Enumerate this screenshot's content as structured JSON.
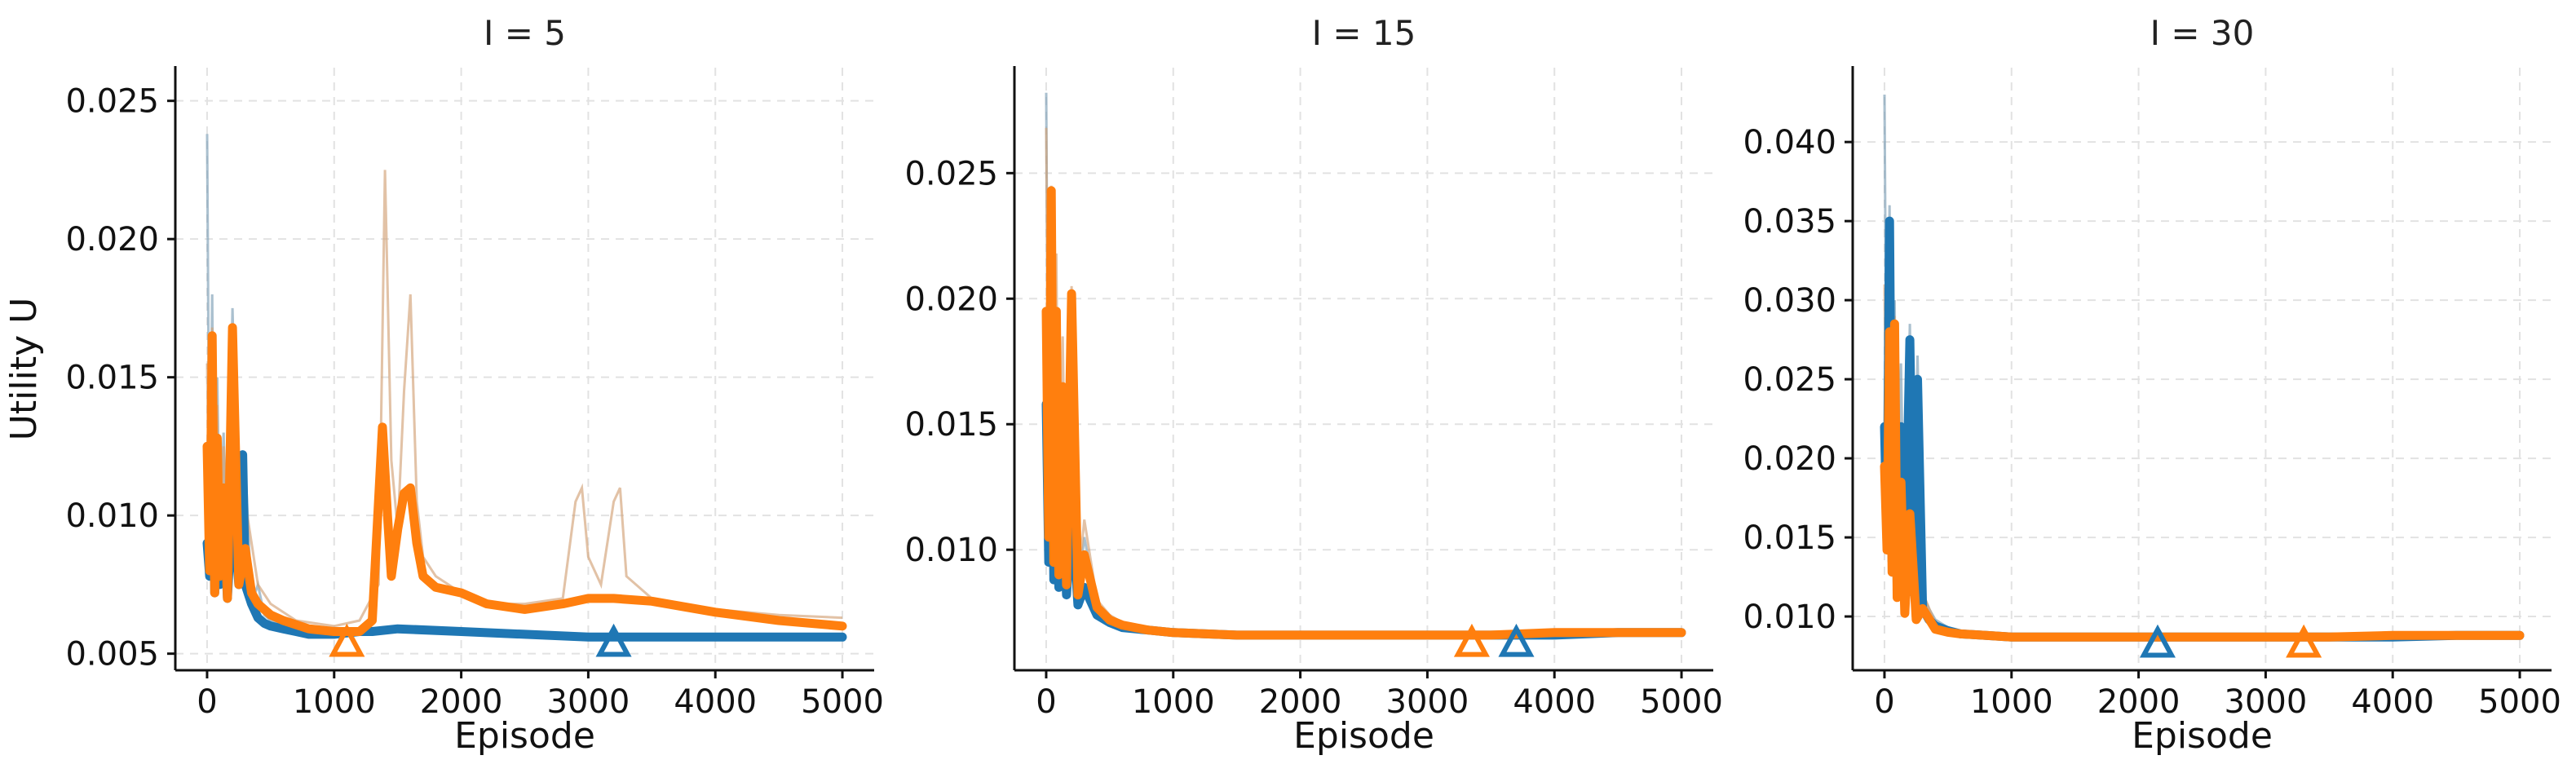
{
  "chart_data": [
    {
      "type": "line",
      "title": "I = 5",
      "xlabel": "Episode",
      "ylabel": "Utility U",
      "xlim": [
        -250,
        5250
      ],
      "ylim": [
        0.0044,
        0.0262
      ],
      "xticks": [
        0,
        1000,
        2000,
        3000,
        4000,
        5000
      ],
      "xtick_labels": [
        "0",
        "1000",
        "2000",
        "3000",
        "4000",
        "5000"
      ],
      "yticks": [
        0.005,
        0.01,
        0.015,
        0.02,
        0.025
      ],
      "ytick_labels": [
        "0.005",
        "0.010",
        "0.015",
        "0.020",
        "0.025"
      ],
      "grid": true,
      "series": [
        {
          "color": "#1f77b4",
          "raw": {
            "x": [
              0,
              20,
              40,
              60,
              80,
              100,
              130,
              160,
              200,
              250,
              300,
              350,
              400,
              450,
              500,
              600,
              700,
              800,
              1000,
              1200,
              1500,
              2000,
              2500,
              3000,
              3500,
              4000,
              4500,
              5000
            ],
            "y": [
              0.0238,
              0.0095,
              0.018,
              0.0075,
              0.015,
              0.0088,
              0.013,
              0.0072,
              0.0175,
              0.0085,
              0.012,
              0.0068,
              0.0075,
              0.0064,
              0.0062,
              0.006,
              0.0058,
              0.0058,
              0.0057,
              0.0058,
              0.006,
              0.0059,
              0.0057,
              0.0057,
              0.0056,
              0.0057,
              0.0056,
              0.0056
            ]
          },
          "smoothed": {
            "x": [
              0,
              20,
              40,
              60,
              80,
              100,
              130,
              160,
              200,
              250,
              280,
              300,
              350,
              400,
              450,
              500,
              600,
              700,
              800,
              1000,
              1200,
              1300,
              1500,
              2000,
              2500,
              3000,
              3500,
              4000,
              4500,
              5000
            ],
            "y": [
              0.009,
              0.0078,
              0.0135,
              0.0072,
              0.0115,
              0.0075,
              0.0098,
              0.007,
              0.0105,
              0.0075,
              0.0122,
              0.0075,
              0.0068,
              0.0063,
              0.0061,
              0.006,
              0.0059,
              0.0058,
              0.0057,
              0.0057,
              0.0058,
              0.0058,
              0.0059,
              0.0058,
              0.0057,
              0.0056,
              0.0056,
              0.0056,
              0.0056,
              0.0056
            ]
          },
          "marker": {
            "x": 3200,
            "y": 0.0054
          }
        },
        {
          "color": "#ff7f0e",
          "raw": {
            "x": [
              0,
              20,
              40,
              60,
              80,
              100,
              130,
              160,
              200,
              250,
              300,
              400,
              500,
              700,
              1000,
              1200,
              1350,
              1400,
              1450,
              1500,
              1550,
              1600,
              1650,
              1700,
              1800,
              2000,
              2200,
              2500,
              2800,
              2900,
              2950,
              3000,
              3100,
              3200,
              3250,
              3300,
              3500,
              4000,
              4500,
              5000
            ],
            "y": [
              0.0155,
              0.0085,
              0.0168,
              0.0075,
              0.014,
              0.0085,
              0.0125,
              0.0072,
              0.0165,
              0.0085,
              0.0105,
              0.0075,
              0.0068,
              0.0062,
              0.006,
              0.0062,
              0.0075,
              0.0225,
              0.012,
              0.0095,
              0.0145,
              0.018,
              0.0105,
              0.0085,
              0.0078,
              0.0072,
              0.0068,
              0.0068,
              0.007,
              0.0105,
              0.011,
              0.0085,
              0.0075,
              0.0105,
              0.011,
              0.0078,
              0.007,
              0.0066,
              0.0064,
              0.0063
            ]
          },
          "smoothed": {
            "x": [
              0,
              20,
              40,
              60,
              80,
              100,
              130,
              160,
              200,
              250,
              300,
              350,
              400,
              500,
              600,
              800,
              1000,
              1200,
              1300,
              1380,
              1420,
              1450,
              1500,
              1550,
              1600,
              1650,
              1700,
              1800,
              2000,
              2200,
              2500,
              2800,
              3000,
              3200,
              3500,
              4000,
              4500,
              5000
            ],
            "y": [
              0.0125,
              0.008,
              0.0165,
              0.0072,
              0.0128,
              0.0078,
              0.011,
              0.007,
              0.0168,
              0.0075,
              0.0088,
              0.0072,
              0.0068,
              0.0064,
              0.0062,
              0.0059,
              0.0058,
              0.0058,
              0.0062,
              0.0132,
              0.01,
              0.0078,
              0.0095,
              0.0108,
              0.011,
              0.009,
              0.0078,
              0.0074,
              0.0072,
              0.0068,
              0.0066,
              0.0068,
              0.007,
              0.007,
              0.0069,
              0.0065,
              0.0062,
              0.006
            ]
          },
          "marker": {
            "x": 1100,
            "y": 0.0054
          }
        }
      ]
    },
    {
      "type": "line",
      "title": "I = 15",
      "xlabel": "Episode",
      "ylabel": "",
      "xlim": [
        -250,
        5250
      ],
      "ylim": [
        0.0052,
        0.0292
      ],
      "xticks": [
        0,
        1000,
        2000,
        3000,
        4000,
        5000
      ],
      "xtick_labels": [
        "0",
        "1000",
        "2000",
        "3000",
        "4000",
        "5000"
      ],
      "yticks": [
        0.01,
        0.015,
        0.02,
        0.025
      ],
      "ytick_labels": [
        "0.010",
        "0.015",
        "0.020",
        "0.025"
      ],
      "grid": true,
      "series": [
        {
          "color": "#1f77b4",
          "raw": {
            "x": [
              0,
              20,
              40,
              60,
              80,
              100,
              130,
              160,
              200,
              250,
              300,
              400,
              500,
              600,
              800,
              1000,
              1500,
              2000,
              2500,
              3000,
              3500,
              4000,
              4500,
              5000
            ],
            "y": [
              0.0282,
              0.0105,
              0.022,
              0.0095,
              0.019,
              0.0092,
              0.0162,
              0.0085,
              0.0148,
              0.0082,
              0.0105,
              0.0078,
              0.0072,
              0.007,
              0.0068,
              0.0067,
              0.0066,
              0.0066,
              0.0066,
              0.0066,
              0.0066,
              0.0066,
              0.0067,
              0.0067
            ]
          },
          "smoothed": {
            "x": [
              0,
              20,
              40,
              60,
              80,
              100,
              130,
              160,
              200,
              250,
              300,
              400,
              500,
              600,
              800,
              1000,
              1500,
              2000,
              2500,
              3000,
              3500,
              4000,
              4500,
              5000
            ],
            "y": [
              0.0158,
              0.0095,
              0.0185,
              0.0088,
              0.0142,
              0.0085,
              0.012,
              0.0082,
              0.0118,
              0.0078,
              0.0085,
              0.0074,
              0.0071,
              0.0069,
              0.0068,
              0.0067,
              0.0066,
              0.0066,
              0.0066,
              0.0066,
              0.0066,
              0.0066,
              0.0067,
              0.0067
            ]
          },
          "marker": {
            "x": 3700,
            "y": 0.0063
          }
        },
        {
          "color": "#ff7f0e",
          "raw": {
            "x": [
              0,
              20,
              40,
              60,
              80,
              100,
              130,
              160,
              200,
              250,
              300,
              400,
              500,
              600,
              800,
              1000,
              1500,
              2000,
              2500,
              3000,
              3500,
              4000,
              4500,
              5000
            ],
            "y": [
              0.0268,
              0.012,
              0.0245,
              0.0105,
              0.0218,
              0.0098,
              0.0185,
              0.009,
              0.0205,
              0.0085,
              0.0112,
              0.008,
              0.0074,
              0.0071,
              0.0068,
              0.0067,
              0.0066,
              0.0066,
              0.0066,
              0.0066,
              0.0066,
              0.0067,
              0.0068,
              0.0068
            ]
          },
          "smoothed": {
            "x": [
              0,
              20,
              40,
              60,
              80,
              100,
              130,
              160,
              200,
              250,
              300,
              400,
              500,
              600,
              800,
              1000,
              1500,
              2000,
              2500,
              3000,
              3500,
              4000,
              4500,
              5000
            ],
            "y": [
              0.0195,
              0.0105,
              0.0243,
              0.0095,
              0.0195,
              0.009,
              0.0165,
              0.0086,
              0.0202,
              0.0082,
              0.0098,
              0.0077,
              0.0072,
              0.007,
              0.0068,
              0.0067,
              0.0066,
              0.0066,
              0.0066,
              0.0066,
              0.0066,
              0.0067,
              0.0067,
              0.0067
            ]
          },
          "marker": {
            "x": 3350,
            "y": 0.0063
          }
        }
      ]
    },
    {
      "type": "line",
      "title": "I = 30",
      "xlabel": "Episode",
      "ylabel": "",
      "xlim": [
        -250,
        5250
      ],
      "ylim": [
        0.0066,
        0.0447
      ],
      "xticks": [
        0,
        1000,
        2000,
        3000,
        4000,
        5000
      ],
      "xtick_labels": [
        "0",
        "1000",
        "2000",
        "3000",
        "4000",
        "5000"
      ],
      "yticks": [
        0.01,
        0.015,
        0.02,
        0.025,
        0.03,
        0.035,
        0.04
      ],
      "ytick_labels": [
        "0.010",
        "0.015",
        "0.020",
        "0.025",
        "0.030",
        "0.035",
        "0.040"
      ],
      "grid": true,
      "series": [
        {
          "color": "#1f77b4",
          "raw": {
            "x": [
              0,
              20,
              40,
              60,
              80,
              100,
              130,
              160,
              200,
              230,
              260,
              300,
              350,
              400,
              500,
              600,
              800,
              1000,
              1500,
              2000,
              2500,
              3000,
              3500,
              4000,
              4500,
              5000
            ],
            "y": [
              0.043,
              0.018,
              0.036,
              0.016,
              0.03,
              0.0135,
              0.026,
              0.012,
              0.0285,
              0.0125,
              0.0265,
              0.0115,
              0.0105,
              0.0098,
              0.0093,
              0.009,
              0.0088,
              0.0087,
              0.0087,
              0.0087,
              0.0087,
              0.0087,
              0.0087,
              0.0088,
              0.0088,
              0.0088
            ]
          },
          "smoothed": {
            "x": [
              0,
              20,
              40,
              60,
              80,
              100,
              130,
              160,
              200,
              230,
              260,
              300,
              350,
              400,
              500,
              600,
              800,
              1000,
              1500,
              2000,
              2500,
              3000,
              3500,
              4000,
              4500,
              5000
            ],
            "y": [
              0.022,
              0.015,
              0.035,
              0.0135,
              0.0265,
              0.012,
              0.022,
              0.0112,
              0.0275,
              0.0115,
              0.025,
              0.0105,
              0.0098,
              0.0094,
              0.0091,
              0.0089,
              0.0088,
              0.0087,
              0.0087,
              0.0087,
              0.0087,
              0.0087,
              0.0087,
              0.0087,
              0.0088,
              0.0088
            ]
          },
          "marker": {
            "x": 2150,
            "y": 0.0083
          }
        },
        {
          "color": "#ff7f0e",
          "raw": {
            "x": [
              0,
              20,
              40,
              60,
              80,
              100,
              130,
              160,
              200,
              250,
              300,
              400,
              500,
              600,
              800,
              1000,
              1500,
              2000,
              2500,
              3000,
              3500,
              4000,
              4500,
              5000
            ],
            "y": [
              0.031,
              0.016,
              0.0295,
              0.0145,
              0.029,
              0.0125,
              0.021,
              0.0112,
              0.0185,
              0.0105,
              0.0115,
              0.0096,
              0.0092,
              0.009,
              0.0088,
              0.0087,
              0.0087,
              0.0087,
              0.0087,
              0.0087,
              0.0088,
              0.0088,
              0.0089,
              0.009
            ]
          },
          "smoothed": {
            "x": [
              0,
              20,
              40,
              60,
              80,
              100,
              130,
              160,
              200,
              250,
              300,
              400,
              500,
              600,
              800,
              1000,
              1500,
              2000,
              2500,
              3000,
              3500,
              4000,
              4500,
              5000
            ],
            "y": [
              0.0195,
              0.0142,
              0.028,
              0.0128,
              0.0285,
              0.0112,
              0.0185,
              0.0102,
              0.0165,
              0.0098,
              0.0105,
              0.0092,
              0.009,
              0.0089,
              0.0088,
              0.0087,
              0.0087,
              0.0087,
              0.0087,
              0.0087,
              0.0087,
              0.0088,
              0.0088,
              0.0088
            ]
          },
          "marker": {
            "x": 3300,
            "y": 0.0083
          }
        }
      ]
    }
  ]
}
